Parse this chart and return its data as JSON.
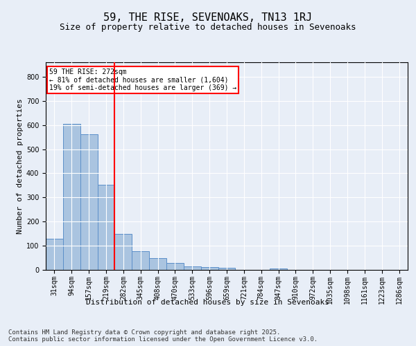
{
  "title": "59, THE RISE, SEVENOAKS, TN13 1RJ",
  "subtitle": "Size of property relative to detached houses in Sevenoaks",
  "xlabel": "Distribution of detached houses by size in Sevenoaks",
  "ylabel": "Number of detached properties",
  "categories": [
    "31sqm",
    "94sqm",
    "157sqm",
    "219sqm",
    "282sqm",
    "345sqm",
    "408sqm",
    "470sqm",
    "533sqm",
    "596sqm",
    "659sqm",
    "721sqm",
    "784sqm",
    "847sqm",
    "910sqm",
    "972sqm",
    "1035sqm",
    "1098sqm",
    "1161sqm",
    "1223sqm",
    "1286sqm"
  ],
  "values": [
    128,
    605,
    563,
    352,
    150,
    77,
    48,
    30,
    13,
    12,
    10,
    0,
    0,
    6,
    0,
    0,
    0,
    0,
    0,
    0,
    0
  ],
  "bar_color": "#aac4e0",
  "bar_edge_color": "#5b8fc9",
  "vline_color": "red",
  "annotation_text": "59 THE RISE: 272sqm\n← 81% of detached houses are smaller (1,604)\n19% of semi-detached houses are larger (369) →",
  "annotation_box_color": "white",
  "annotation_box_edge_color": "red",
  "ylim": [
    0,
    860
  ],
  "yticks": [
    0,
    100,
    200,
    300,
    400,
    500,
    600,
    700,
    800
  ],
  "background_color": "#e8eef7",
  "plot_bg_color": "#e8eef7",
  "grid_color": "white",
  "footer_text": "Contains HM Land Registry data © Crown copyright and database right 2025.\nContains public sector information licensed under the Open Government Licence v3.0.",
  "title_fontsize": 11,
  "subtitle_fontsize": 9,
  "xlabel_fontsize": 8,
  "ylabel_fontsize": 8,
  "tick_fontsize": 7,
  "footer_fontsize": 6.5
}
